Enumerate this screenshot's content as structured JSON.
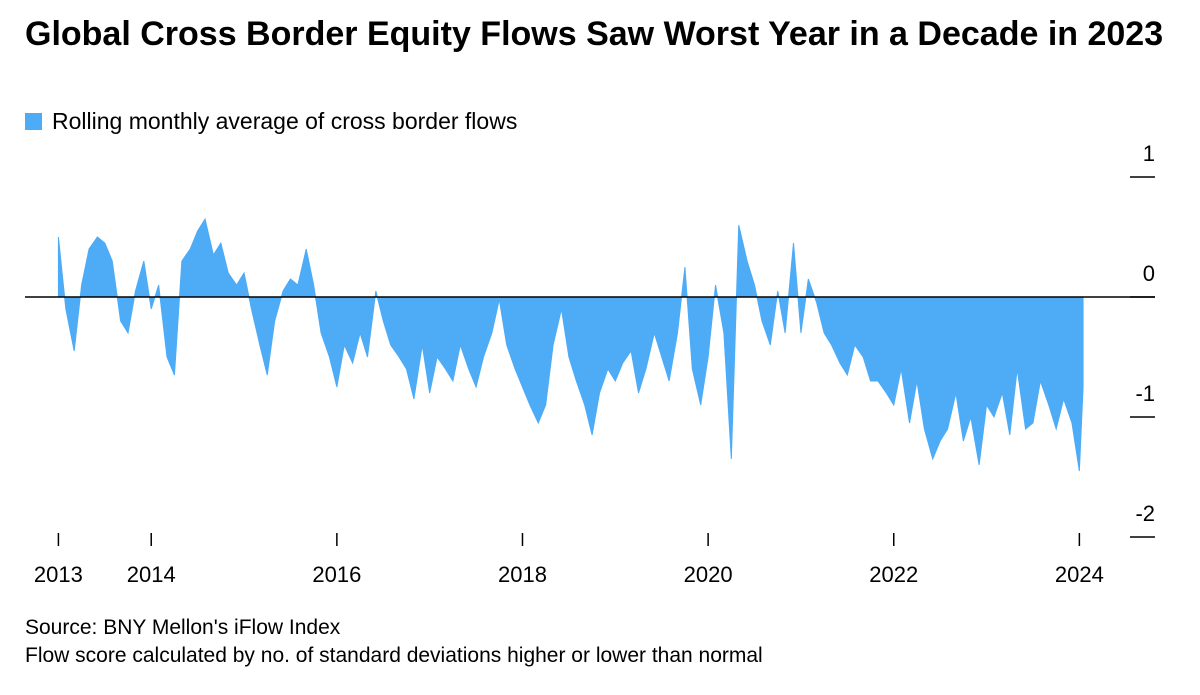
{
  "chart_data": {
    "type": "area",
    "title": "Global Cross Border Equity Flows Saw Worst Year in a Decade in 2023",
    "source": "Source: BNY Mellon's iFlow Index",
    "note": "Flow score calculated by no. of standard deviations higher or lower than normal",
    "x": [
      2013,
      2013.08,
      2013.17,
      2013.25,
      2013.33,
      2013.42,
      2013.5,
      2013.58,
      2013.67,
      2013.75,
      2013.83,
      2013.92,
      2014,
      2014.08,
      2014.17,
      2014.25,
      2014.33,
      2014.42,
      2014.5,
      2014.58,
      2014.67,
      2014.75,
      2014.83,
      2014.92,
      2015,
      2015.08,
      2015.17,
      2015.25,
      2015.33,
      2015.42,
      2015.5,
      2015.58,
      2015.67,
      2015.75,
      2015.83,
      2015.92,
      2016,
      2016.08,
      2016.17,
      2016.25,
      2016.33,
      2016.42,
      2016.5,
      2016.58,
      2016.67,
      2016.75,
      2016.83,
      2016.92,
      2017,
      2017.08,
      2017.17,
      2017.25,
      2017.33,
      2017.42,
      2017.5,
      2017.58,
      2017.67,
      2017.75,
      2017.83,
      2017.92,
      2018,
      2018.08,
      2018.17,
      2018.25,
      2018.33,
      2018.42,
      2018.5,
      2018.58,
      2018.67,
      2018.75,
      2018.83,
      2018.92,
      2019,
      2019.08,
      2019.17,
      2019.25,
      2019.33,
      2019.42,
      2019.5,
      2019.58,
      2019.67,
      2019.75,
      2019.83,
      2019.92,
      2020,
      2020.08,
      2020.17,
      2020.25,
      2020.33,
      2020.42,
      2020.5,
      2020.58,
      2020.67,
      2020.75,
      2020.83,
      2020.92,
      2021,
      2021.08,
      2021.17,
      2021.25,
      2021.33,
      2021.42,
      2021.5,
      2021.58,
      2021.67,
      2021.75,
      2021.83,
      2021.92,
      2022,
      2022.08,
      2022.17,
      2022.25,
      2022.33,
      2022.42,
      2022.5,
      2022.58,
      2022.67,
      2022.75,
      2022.83,
      2022.92,
      2023,
      2023.08,
      2023.17,
      2023.25,
      2023.33,
      2023.42,
      2023.5,
      2023.58,
      2023.67,
      2023.75,
      2023.83,
      2023.92,
      2024,
      2024.04
    ],
    "series": [
      {
        "name": "Rolling monthly average of cross border flows",
        "color": "#4eabf6",
        "values": [
          0.5,
          -0.1,
          -0.45,
          0.1,
          0.4,
          0.5,
          0.45,
          0.3,
          -0.2,
          -0.3,
          0.05,
          0.3,
          -0.1,
          0.1,
          -0.5,
          -0.65,
          0.3,
          0.4,
          0.55,
          0.65,
          0.35,
          0.45,
          0.2,
          0.1,
          0.2,
          -0.1,
          -0.4,
          -0.65,
          -0.2,
          0.05,
          0.15,
          0.1,
          0.4,
          0.1,
          -0.3,
          -0.5,
          -0.75,
          -0.4,
          -0.55,
          -0.3,
          -0.5,
          0.05,
          -0.2,
          -0.4,
          -0.5,
          -0.6,
          -0.85,
          -0.4,
          -0.8,
          -0.5,
          -0.6,
          -0.7,
          -0.4,
          -0.6,
          -0.75,
          -0.5,
          -0.3,
          -0.02,
          -0.4,
          -0.6,
          -0.75,
          -0.9,
          -1.05,
          -0.9,
          -0.4,
          -0.1,
          -0.5,
          -0.7,
          -0.9,
          -1.15,
          -0.8,
          -0.6,
          -0.7,
          -0.55,
          -0.45,
          -0.8,
          -0.6,
          -0.3,
          -0.5,
          -0.7,
          -0.3,
          0.25,
          -0.6,
          -0.9,
          -0.5,
          0.1,
          -0.3,
          -1.35,
          0.6,
          0.3,
          0.1,
          -0.2,
          -0.4,
          0.05,
          -0.3,
          0.45,
          -0.3,
          0.15,
          -0.05,
          -0.3,
          -0.4,
          -0.55,
          -0.65,
          -0.4,
          -0.5,
          -0.7,
          -0.7,
          -0.8,
          -0.9,
          -0.6,
          -1.05,
          -0.7,
          -1.1,
          -1.35,
          -1.2,
          -1.1,
          -0.8,
          -1.2,
          -1.0,
          -1.4,
          -0.9,
          -1.0,
          -0.8,
          -1.15,
          -0.6,
          -1.1,
          -1.05,
          -0.7,
          -0.9,
          -1.1,
          -0.85,
          -1.05,
          -1.45,
          -0.75
        ]
      }
    ],
    "xlim": [
      2012.64,
      2024.33
    ],
    "xticks": [
      2013,
      2014,
      2016,
      2018,
      2020,
      2022,
      2024
    ],
    "ylim": [
      -2,
      1
    ],
    "yticks": [
      1,
      0,
      -1,
      -2
    ]
  }
}
